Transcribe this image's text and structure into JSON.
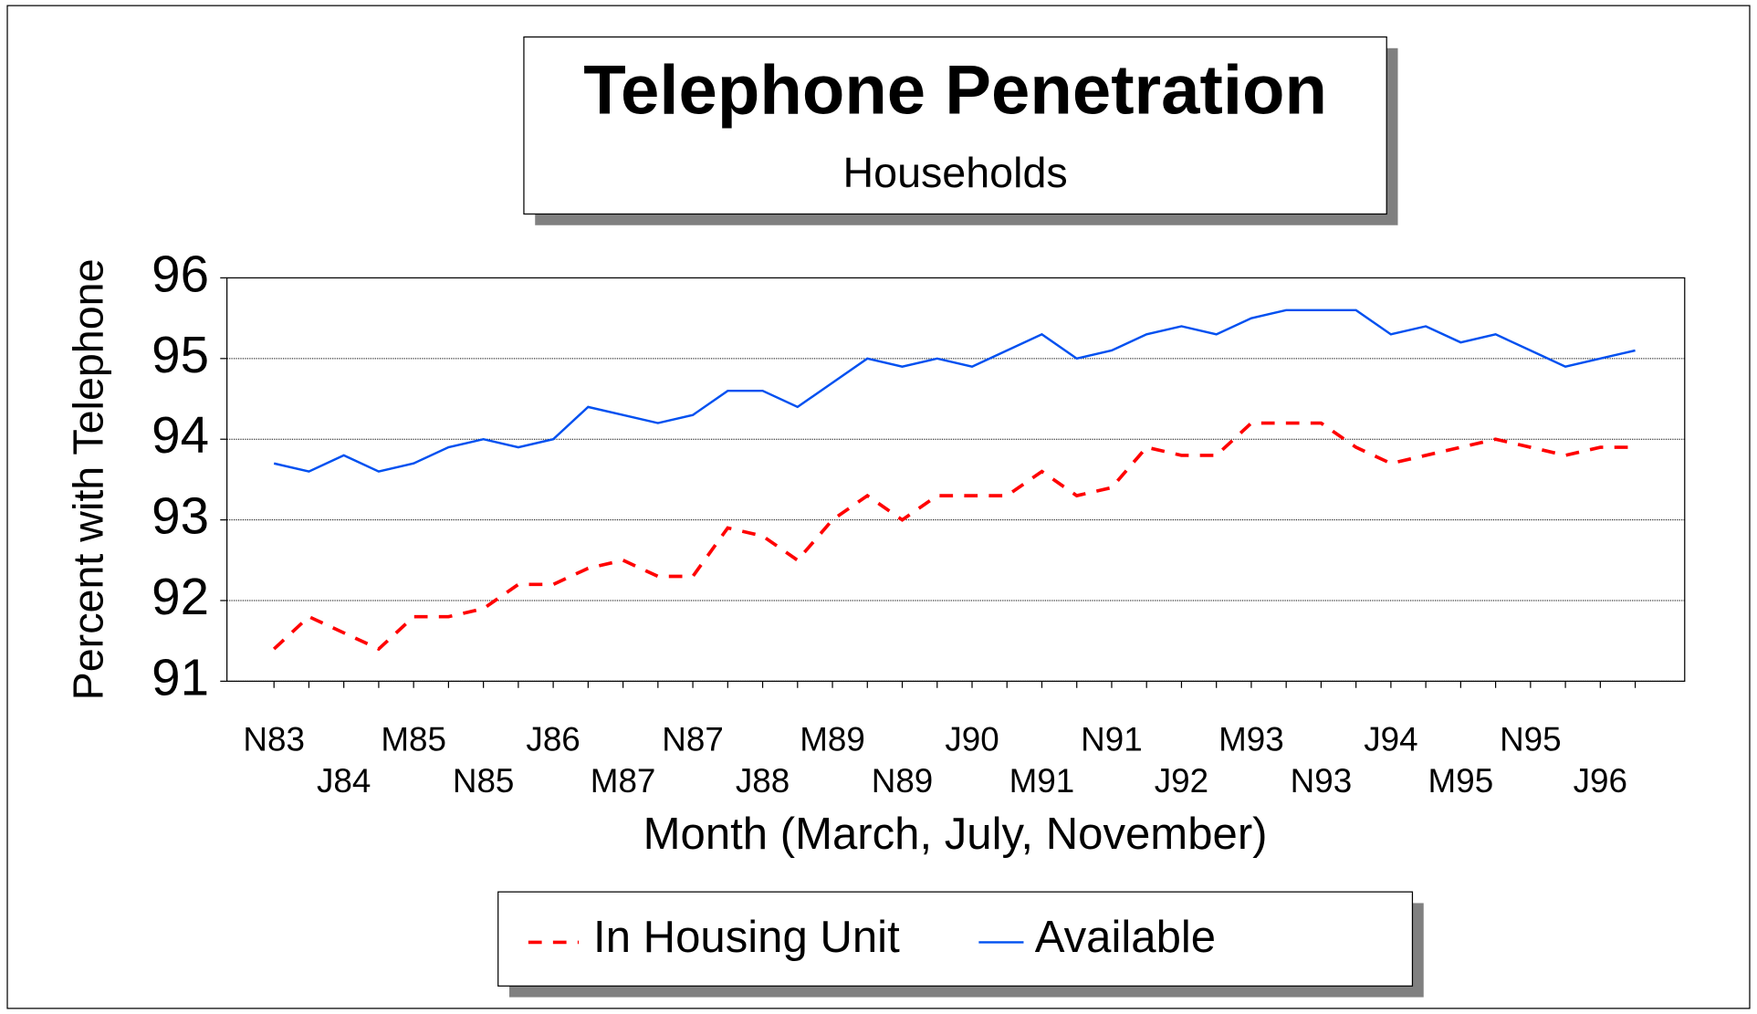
{
  "chart_data": {
    "type": "line",
    "title": "Telephone Penetration",
    "subtitle": "Households",
    "x_label": "Month (March, July, November)",
    "y_label": "Percent with Telephone",
    "categories": [
      "N83",
      null,
      "J84",
      null,
      "M85",
      null,
      "N85",
      null,
      "J86",
      null,
      "M87",
      null,
      "N87",
      null,
      "J88",
      null,
      "M89",
      null,
      "N89",
      null,
      "J90",
      null,
      "M91",
      null,
      "N91",
      null,
      "J92",
      null,
      "M93",
      null,
      "N93",
      null,
      "J94",
      null,
      "M95",
      null,
      "N95",
      null,
      "J96",
      null
    ],
    "series": [
      {
        "name": "In Housing Unit",
        "color": "#ff0000",
        "line_style": "dashed",
        "values": [
          91.4,
          91.8,
          91.6,
          91.4,
          91.8,
          91.8,
          91.9,
          92.2,
          92.2,
          92.4,
          92.5,
          92.3,
          92.3,
          92.9,
          92.8,
          92.5,
          93.0,
          93.3,
          93.0,
          93.3,
          93.3,
          93.3,
          93.6,
          93.3,
          93.4,
          93.9,
          93.8,
          93.8,
          94.2,
          94.2,
          94.2,
          93.9,
          93.7,
          93.8,
          93.9,
          94.0,
          93.9,
          93.8,
          93.9,
          93.9
        ]
      },
      {
        "name": "Available",
        "color": "#0050f0",
        "line_style": "solid",
        "values": [
          93.7,
          93.6,
          93.8,
          93.6,
          93.7,
          93.9,
          94.0,
          93.9,
          94.0,
          94.4,
          94.3,
          94.2,
          94.3,
          94.6,
          94.6,
          94.4,
          94.7,
          95.0,
          94.9,
          95.0,
          94.9,
          95.1,
          95.3,
          95.0,
          95.1,
          95.3,
          95.4,
          95.3,
          95.5,
          95.6,
          95.6,
          95.6,
          95.3,
          95.4,
          95.2,
          95.3,
          95.1,
          94.9,
          95.0,
          95.1
        ]
      }
    ],
    "ylim": [
      91,
      96
    ],
    "yticks": [
      91,
      92,
      93,
      94,
      95,
      96
    ],
    "grid": true,
    "legend": "bottom"
  }
}
